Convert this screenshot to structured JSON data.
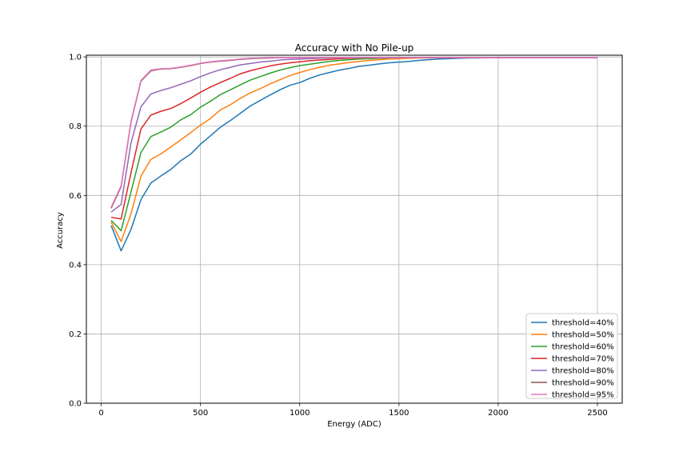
{
  "chart_data": {
    "type": "line",
    "title": "Accuracy with No Pile-up",
    "xlabel": "Energy (ADC)",
    "ylabel": "Accuracy",
    "xlim": [
      -75,
      2625
    ],
    "ylim": [
      0,
      1.005
    ],
    "x_ticks": [
      0,
      500,
      1000,
      1500,
      2000,
      2500
    ],
    "x_tick_labels": [
      "0",
      "500",
      "1000",
      "1500",
      "2000",
      "2500"
    ],
    "y_ticks": [
      0.0,
      0.2,
      0.4,
      0.6,
      0.8,
      1.0
    ],
    "y_tick_labels": [
      "0.0",
      "0.2",
      "0.4",
      "0.6",
      "0.8",
      "1.0"
    ],
    "grid": true,
    "legend_position": "lower-right",
    "x": [
      50,
      100,
      150,
      200,
      250,
      300,
      350,
      400,
      450,
      500,
      550,
      600,
      650,
      700,
      750,
      800,
      850,
      900,
      950,
      1000,
      1050,
      1100,
      1150,
      1200,
      1250,
      1300,
      1350,
      1400,
      1450,
      1500,
      1550,
      1600,
      1650,
      1700,
      1750,
      1800,
      1850,
      1900,
      1950,
      2000,
      2050,
      2100,
      2150,
      2200,
      2250,
      2300,
      2350,
      2400,
      2450,
      2500
    ],
    "series": [
      {
        "name": "threshold=40%",
        "color": "#1f77b4",
        "values": [
          0.513,
          0.44,
          0.502,
          0.588,
          0.636,
          0.656,
          0.675,
          0.7,
          0.719,
          0.748,
          0.772,
          0.797,
          0.816,
          0.837,
          0.858,
          0.874,
          0.89,
          0.905,
          0.918,
          0.926,
          0.938,
          0.948,
          0.955,
          0.962,
          0.967,
          0.973,
          0.976,
          0.98,
          0.983,
          0.985,
          0.987,
          0.99,
          0.992,
          0.994,
          0.995,
          0.996,
          0.997,
          0.997,
          0.998,
          0.998,
          0.998,
          0.998,
          0.998,
          0.998,
          0.998,
          0.998,
          0.998,
          0.998,
          0.998,
          0.998
        ]
      },
      {
        "name": "threshold=50%",
        "color": "#ff7f0e",
        "values": [
          0.523,
          0.467,
          0.547,
          0.656,
          0.704,
          0.72,
          0.74,
          0.76,
          0.781,
          0.803,
          0.822,
          0.847,
          0.862,
          0.88,
          0.896,
          0.908,
          0.922,
          0.934,
          0.946,
          0.955,
          0.963,
          0.97,
          0.976,
          0.98,
          0.984,
          0.987,
          0.99,
          0.992,
          0.994,
          0.995,
          0.996,
          0.997,
          0.997,
          0.998,
          0.998,
          0.998,
          0.998,
          0.998,
          0.998,
          0.998,
          0.998,
          0.998,
          0.998,
          0.998,
          0.998,
          0.998,
          0.998,
          0.998,
          0.998,
          0.998
        ]
      },
      {
        "name": "threshold=60%",
        "color": "#2ca02c",
        "values": [
          0.528,
          0.498,
          0.61,
          0.724,
          0.77,
          0.783,
          0.797,
          0.818,
          0.833,
          0.855,
          0.872,
          0.891,
          0.905,
          0.919,
          0.933,
          0.943,
          0.953,
          0.962,
          0.969,
          0.975,
          0.979,
          0.983,
          0.987,
          0.99,
          0.992,
          0.994,
          0.995,
          0.996,
          0.997,
          0.998,
          0.998,
          0.998,
          0.998,
          0.998,
          0.998,
          0.998,
          0.998,
          0.998,
          0.998,
          0.998,
          0.998,
          0.998,
          0.998,
          0.998,
          0.998,
          0.998,
          0.998,
          0.998,
          0.998,
          0.998
        ]
      },
      {
        "name": "threshold=70%",
        "color": "#d62728",
        "values": [
          0.537,
          0.532,
          0.666,
          0.792,
          0.832,
          0.843,
          0.851,
          0.865,
          0.881,
          0.898,
          0.913,
          0.926,
          0.938,
          0.951,
          0.96,
          0.967,
          0.974,
          0.979,
          0.983,
          0.986,
          0.989,
          0.991,
          0.993,
          0.995,
          0.996,
          0.997,
          0.998,
          0.998,
          0.998,
          0.998,
          0.998,
          0.998,
          0.998,
          0.998,
          0.998,
          0.998,
          0.998,
          0.998,
          0.998,
          0.998,
          0.998,
          0.998,
          0.998,
          0.998,
          0.998,
          0.998,
          0.998,
          0.998,
          0.998,
          0.998
        ]
      },
      {
        "name": "threshold=80%",
        "color": "#9467bd",
        "values": [
          0.552,
          0.574,
          0.752,
          0.856,
          0.893,
          0.903,
          0.911,
          0.921,
          0.931,
          0.943,
          0.954,
          0.963,
          0.97,
          0.977,
          0.981,
          0.985,
          0.988,
          0.991,
          0.993,
          0.994,
          0.995,
          0.996,
          0.997,
          0.998,
          0.998,
          0.998,
          0.998,
          0.998,
          0.998,
          0.998,
          0.998,
          0.998,
          0.998,
          0.998,
          0.998,
          0.998,
          0.998,
          0.998,
          0.998,
          0.998,
          0.998,
          0.998,
          0.998,
          0.998,
          0.998,
          0.998,
          0.998,
          0.998,
          0.998,
          0.998
        ]
      },
      {
        "name": "threshold=90%",
        "color": "#8c564b",
        "values": [
          0.563,
          0.625,
          0.812,
          0.93,
          0.96,
          0.965,
          0.966,
          0.97,
          0.975,
          0.981,
          0.985,
          0.988,
          0.99,
          0.993,
          0.995,
          0.996,
          0.997,
          0.998,
          0.998,
          0.998,
          0.998,
          0.998,
          0.998,
          0.998,
          0.998,
          0.998,
          0.998,
          0.998,
          0.998,
          0.998,
          0.998,
          0.998,
          0.998,
          0.998,
          0.998,
          0.998,
          0.998,
          0.998,
          0.998,
          0.998,
          0.998,
          0.998,
          0.998,
          0.998,
          0.998,
          0.998,
          0.998,
          0.998,
          0.998,
          0.998
        ]
      },
      {
        "name": "threshold=95%",
        "color": "#e377c2",
        "values": [
          0.566,
          0.628,
          0.815,
          0.932,
          0.962,
          0.966,
          0.967,
          0.971,
          0.976,
          0.982,
          0.986,
          0.989,
          0.991,
          0.994,
          0.996,
          0.997,
          0.998,
          0.998,
          0.998,
          0.998,
          0.998,
          0.998,
          0.998,
          0.998,
          0.998,
          0.998,
          0.998,
          0.998,
          0.998,
          0.998,
          0.998,
          0.998,
          0.998,
          0.998,
          0.998,
          0.998,
          0.998,
          0.998,
          0.998,
          0.998,
          0.998,
          0.998,
          0.998,
          0.998,
          0.998,
          0.998,
          0.998,
          0.998,
          0.998,
          0.998
        ]
      }
    ]
  }
}
